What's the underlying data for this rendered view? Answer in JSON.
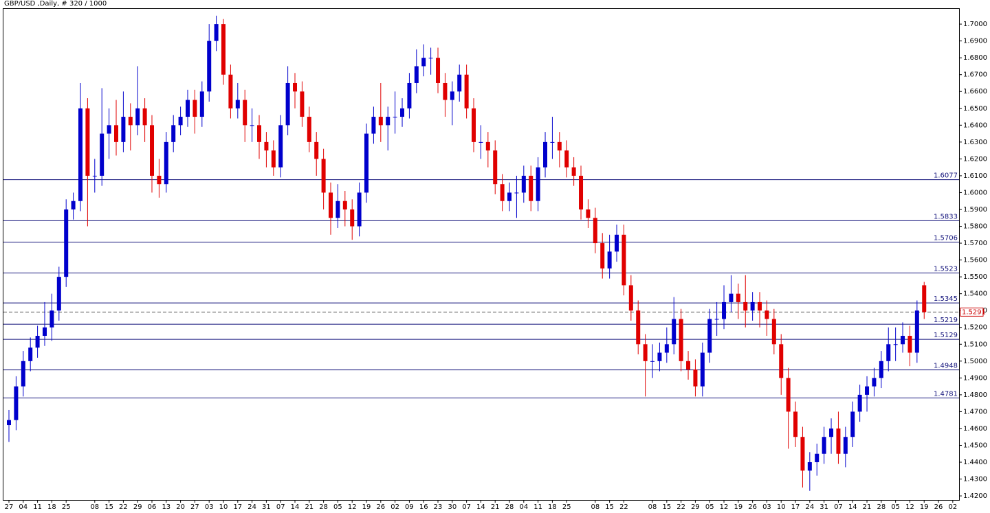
{
  "chart_data": {
    "type": "candlestick",
    "title": "GBP/USD ,Daily, # 320 / 1000",
    "open": [
      1.462,
      1.465,
      1.485,
      1.5,
      1.508,
      1.515,
      1.52,
      1.53,
      1.55,
      1.59,
      1.595,
      1.65,
      1.61,
      1.61,
      1.635,
      1.64,
      1.63,
      1.645,
      1.64,
      1.65,
      1.64,
      1.61,
      1.605,
      1.63,
      1.64,
      1.645,
      1.655,
      1.645,
      1.66,
      1.69,
      1.7,
      1.67,
      1.65,
      1.655,
      1.64,
      1.64,
      1.63,
      1.625,
      1.615,
      1.64,
      1.665,
      1.66,
      1.645,
      1.63,
      1.62,
      1.6,
      1.585,
      1.595,
      1.59,
      1.58,
      1.6,
      1.635,
      1.645,
      1.64,
      1.645,
      1.645,
      1.65,
      1.665,
      1.675,
      1.68,
      1.68,
      1.665,
      1.655,
      1.66,
      1.67,
      1.65,
      1.63,
      1.63,
      1.625,
      1.605,
      1.595,
      1.6,
      1.6,
      1.61,
      1.595,
      1.615,
      1.63,
      1.63,
      1.625,
      1.615,
      1.61,
      1.59,
      1.585,
      1.57,
      1.555,
      1.565,
      1.575,
      1.545,
      1.53,
      1.51,
      1.5,
      1.5,
      1.505,
      1.51,
      1.525,
      1.5,
      1.495,
      1.485,
      1.505,
      1.525,
      1.525,
      1.535,
      1.54,
      1.535,
      1.53,
      1.535,
      1.53,
      1.525,
      1.51,
      1.49,
      1.47,
      1.455,
      1.435,
      1.44,
      1.445,
      1.455,
      1.46,
      1.445,
      1.455,
      1.47,
      1.48,
      1.485,
      1.49,
      1.5,
      1.51,
      1.51,
      1.515,
      1.505,
      1.545
    ],
    "high": [
      1.471,
      1.491,
      1.506,
      1.514,
      1.521,
      1.535,
      1.54,
      1.556,
      1.596,
      1.6,
      1.665,
      1.656,
      1.62,
      1.662,
      1.65,
      1.655,
      1.66,
      1.653,
      1.675,
      1.656,
      1.646,
      1.62,
      1.636,
      1.646,
      1.651,
      1.661,
      1.661,
      1.666,
      1.7,
      1.705,
      1.703,
      1.676,
      1.665,
      1.661,
      1.65,
      1.646,
      1.636,
      1.631,
      1.646,
      1.675,
      1.671,
      1.666,
      1.651,
      1.636,
      1.626,
      1.606,
      1.605,
      1.601,
      1.596,
      1.606,
      1.641,
      1.651,
      1.665,
      1.651,
      1.66,
      1.656,
      1.671,
      1.685,
      1.688,
      1.686,
      1.686,
      1.671,
      1.666,
      1.676,
      1.676,
      1.656,
      1.64,
      1.636,
      1.631,
      1.611,
      1.606,
      1.61,
      1.616,
      1.616,
      1.621,
      1.636,
      1.645,
      1.636,
      1.631,
      1.621,
      1.616,
      1.596,
      1.591,
      1.576,
      1.575,
      1.581,
      1.581,
      1.551,
      1.536,
      1.516,
      1.51,
      1.511,
      1.52,
      1.538,
      1.531,
      1.506,
      1.501,
      1.511,
      1.531,
      1.535,
      1.545,
      1.551,
      1.546,
      1.551,
      1.541,
      1.541,
      1.536,
      1.531,
      1.516,
      1.496,
      1.476,
      1.461,
      1.446,
      1.451,
      1.461,
      1.466,
      1.47,
      1.461,
      1.476,
      1.486,
      1.491,
      1.496,
      1.506,
      1.52,
      1.52,
      1.523,
      1.521,
      1.536,
      1.547
    ],
    "low": [
      1.452,
      1.459,
      1.479,
      1.494,
      1.502,
      1.509,
      1.512,
      1.524,
      1.544,
      1.584,
      1.589,
      1.58,
      1.6,
      1.604,
      1.62,
      1.622,
      1.624,
      1.625,
      1.634,
      1.63,
      1.6,
      1.597,
      1.6,
      1.624,
      1.634,
      1.639,
      1.635,
      1.639,
      1.654,
      1.684,
      1.664,
      1.644,
      1.644,
      1.63,
      1.63,
      1.62,
      1.615,
      1.61,
      1.609,
      1.634,
      1.65,
      1.639,
      1.624,
      1.61,
      1.59,
      1.575,
      1.579,
      1.58,
      1.572,
      1.574,
      1.594,
      1.629,
      1.63,
      1.625,
      1.635,
      1.639,
      1.644,
      1.659,
      1.669,
      1.67,
      1.659,
      1.645,
      1.64,
      1.654,
      1.644,
      1.624,
      1.62,
      1.615,
      1.599,
      1.589,
      1.589,
      1.585,
      1.594,
      1.589,
      1.589,
      1.609,
      1.62,
      1.615,
      1.609,
      1.604,
      1.584,
      1.579,
      1.564,
      1.549,
      1.549,
      1.559,
      1.539,
      1.524,
      1.504,
      1.479,
      1.49,
      1.494,
      1.499,
      1.504,
      1.494,
      1.489,
      1.479,
      1.479,
      1.499,
      1.515,
      1.519,
      1.529,
      1.525,
      1.52,
      1.524,
      1.52,
      1.515,
      1.504,
      1.48,
      1.448,
      1.449,
      1.425,
      1.423,
      1.432,
      1.439,
      1.445,
      1.439,
      1.437,
      1.449,
      1.464,
      1.47,
      1.479,
      1.484,
      1.494,
      1.5,
      1.505,
      1.497,
      1.499,
      1.525
    ],
    "close": [
      1.465,
      1.485,
      1.5,
      1.508,
      1.515,
      1.52,
      1.53,
      1.55,
      1.59,
      1.595,
      1.65,
      1.61,
      1.61,
      1.635,
      1.64,
      1.63,
      1.645,
      1.64,
      1.65,
      1.64,
      1.61,
      1.605,
      1.63,
      1.64,
      1.645,
      1.655,
      1.645,
      1.66,
      1.69,
      1.7,
      1.67,
      1.65,
      1.655,
      1.64,
      1.64,
      1.63,
      1.625,
      1.615,
      1.64,
      1.665,
      1.66,
      1.645,
      1.63,
      1.62,
      1.6,
      1.585,
      1.595,
      1.59,
      1.58,
      1.6,
      1.635,
      1.645,
      1.64,
      1.645,
      1.645,
      1.65,
      1.665,
      1.675,
      1.68,
      1.68,
      1.665,
      1.655,
      1.66,
      1.67,
      1.65,
      1.63,
      1.63,
      1.625,
      1.605,
      1.595,
      1.6,
      1.6,
      1.61,
      1.595,
      1.615,
      1.63,
      1.63,
      1.625,
      1.615,
      1.61,
      1.59,
      1.585,
      1.57,
      1.555,
      1.565,
      1.575,
      1.545,
      1.53,
      1.51,
      1.5,
      1.5,
      1.505,
      1.51,
      1.525,
      1.5,
      1.495,
      1.485,
      1.505,
      1.525,
      1.525,
      1.535,
      1.54,
      1.535,
      1.53,
      1.535,
      1.53,
      1.525,
      1.51,
      1.49,
      1.47,
      1.455,
      1.435,
      1.44,
      1.445,
      1.455,
      1.46,
      1.445,
      1.455,
      1.47,
      1.48,
      1.485,
      1.49,
      1.5,
      1.51,
      1.51,
      1.515,
      1.505,
      1.53,
      1.5291
    ],
    "up_color": "#0000cc",
    "down_color": "#e00000",
    "xlim": [
      -1.25,
      132.88
    ],
    "xticks": [
      {
        "value": 0,
        "label": "27"
      },
      {
        "value": 2,
        "label": "04"
      },
      {
        "value": 4,
        "label": "11"
      },
      {
        "value": 6,
        "label": "18"
      },
      {
        "value": 8,
        "label": "25"
      },
      {
        "value": 12,
        "label": "08"
      },
      {
        "value": 14,
        "label": "15"
      },
      {
        "value": 16,
        "label": "22"
      },
      {
        "value": 18,
        "label": "29"
      },
      {
        "value": 20,
        "label": "06"
      },
      {
        "value": 22,
        "label": "13"
      },
      {
        "value": 24,
        "label": "20"
      },
      {
        "value": 26,
        "label": "27"
      },
      {
        "value": 28,
        "label": "03"
      },
      {
        "value": 30,
        "label": "10"
      },
      {
        "value": 32,
        "label": "17"
      },
      {
        "value": 34,
        "label": "24"
      },
      {
        "value": 36,
        "label": "31"
      },
      {
        "value": 38,
        "label": "07"
      },
      {
        "value": 40,
        "label": "14"
      },
      {
        "value": 42,
        "label": "21"
      },
      {
        "value": 44,
        "label": "28"
      },
      {
        "value": 46,
        "label": "05"
      },
      {
        "value": 48,
        "label": "12"
      },
      {
        "value": 50,
        "label": "19"
      },
      {
        "value": 52,
        "label": "26"
      },
      {
        "value": 54,
        "label": "02"
      },
      {
        "value": 56,
        "label": "09"
      },
      {
        "value": 58,
        "label": "16"
      },
      {
        "value": 60,
        "label": "23"
      },
      {
        "value": 62,
        "label": "30"
      },
      {
        "value": 64,
        "label": "07"
      },
      {
        "value": 66,
        "label": "14"
      },
      {
        "value": 68,
        "label": "21"
      },
      {
        "value": 70,
        "label": "28"
      },
      {
        "value": 72,
        "label": "04"
      },
      {
        "value": 74,
        "label": "11"
      },
      {
        "value": 76,
        "label": "18"
      },
      {
        "value": 78,
        "label": "25"
      },
      {
        "value": 82,
        "label": "08"
      },
      {
        "value": 84,
        "label": "15"
      },
      {
        "value": 86,
        "label": "22"
      },
      {
        "value": 90,
        "label": "08"
      },
      {
        "value": 92,
        "label": "15"
      },
      {
        "value": 94,
        "label": "22"
      },
      {
        "value": 96,
        "label": "29"
      },
      {
        "value": 98,
        "label": "05"
      },
      {
        "value": 100,
        "label": "12"
      },
      {
        "value": 102,
        "label": "19"
      },
      {
        "value": 104,
        "label": "26"
      },
      {
        "value": 106,
        "label": "03"
      },
      {
        "value": 108,
        "label": "10"
      },
      {
        "value": 110,
        "label": "17"
      },
      {
        "value": 112,
        "label": "24"
      },
      {
        "value": 114,
        "label": "31"
      },
      {
        "value": 116,
        "label": "07"
      },
      {
        "value": 118,
        "label": "14"
      },
      {
        "value": 120,
        "label": "21"
      },
      {
        "value": 122,
        "label": "28"
      },
      {
        "value": 124,
        "label": "05"
      },
      {
        "value": 126,
        "label": "12"
      },
      {
        "value": 128,
        "label": "19"
      },
      {
        "value": 130,
        "label": "26"
      },
      {
        "value": 132,
        "label": "02"
      }
    ],
    "ylim": [
      1.418,
      1.7086
    ],
    "yticks": [
      {
        "value": 1.42,
        "label": "1.4200"
      },
      {
        "value": 1.43,
        "label": "1.4300"
      },
      {
        "value": 1.44,
        "label": "1.4400"
      },
      {
        "value": 1.45,
        "label": "1.4500"
      },
      {
        "value": 1.46,
        "label": "1.4600"
      },
      {
        "value": 1.47,
        "label": "1.4700"
      },
      {
        "value": 1.48,
        "label": "1.4800"
      },
      {
        "value": 1.49,
        "label": "1.4900"
      },
      {
        "value": 1.5,
        "label": "1.5000"
      },
      {
        "value": 1.51,
        "label": "1.5100"
      },
      {
        "value": 1.52,
        "label": "1.5200"
      },
      {
        "value": 1.53,
        "label": "1.5300"
      },
      {
        "value": 1.54,
        "label": "1.5400"
      },
      {
        "value": 1.55,
        "label": "1.5500"
      },
      {
        "value": 1.56,
        "label": "1.5600"
      },
      {
        "value": 1.57,
        "label": "1.5700"
      },
      {
        "value": 1.58,
        "label": "1.5800"
      },
      {
        "value": 1.59,
        "label": "1.5900"
      },
      {
        "value": 1.6,
        "label": "1.6000"
      },
      {
        "value": 1.61,
        "label": "1.6100"
      },
      {
        "value": 1.62,
        "label": "1.6200"
      },
      {
        "value": 1.63,
        "label": "1.6300"
      },
      {
        "value": 1.64,
        "label": "1.6400"
      },
      {
        "value": 1.65,
        "label": "1.6500"
      },
      {
        "value": 1.66,
        "label": "1.6600"
      },
      {
        "value": 1.67,
        "label": "1.6700"
      },
      {
        "value": 1.68,
        "label": "1.6800"
      },
      {
        "value": 1.69,
        "label": "1.6900"
      },
      {
        "value": 1.7,
        "label": "1.7000"
      }
    ],
    "levels": [
      1.6077,
      1.5833,
      1.5706,
      1.5523,
      1.5345,
      1.5219,
      1.5129,
      1.4948,
      1.4781
    ],
    "level_color": "#10107a",
    "current_price": 1.5291,
    "current_color": "#cc0000"
  }
}
